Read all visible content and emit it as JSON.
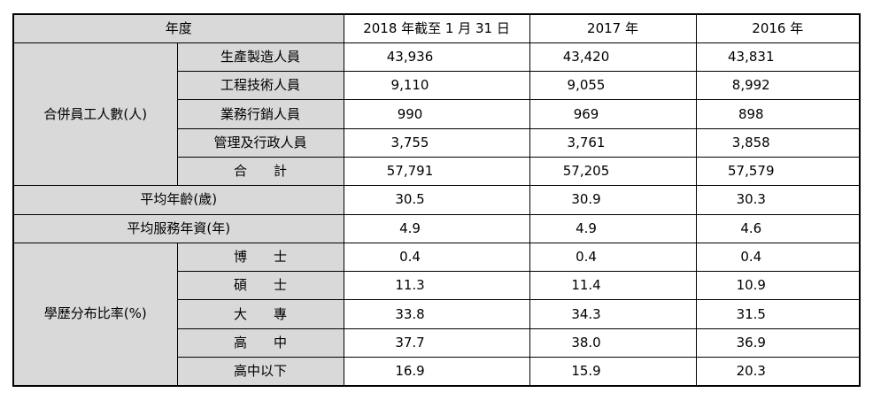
{
  "header": {
    "year_label": "年度",
    "col1": "2018 年截至 1 月 31 日",
    "col2": "2017 年",
    "col3": "2016 年"
  },
  "rows": [
    {
      "group": "合併員工人數(人)",
      "label": "生產製造人員",
      "values": [
        "43,936",
        "43,420",
        "43,831"
      ]
    },
    {
      "label": "工程技術人員",
      "values": [
        "9,110",
        "9,055",
        "8,992"
      ]
    },
    {
      "label": "業務行銷人員",
      "values": [
        "990",
        "969",
        "898"
      ]
    },
    {
      "label": "管理及行政人員",
      "values": [
        "3,755",
        "3,761",
        "3,858"
      ]
    },
    {
      "label": "合　　計",
      "values": [
        "57,791",
        "57,205",
        "57,579"
      ]
    },
    {
      "label": "平均年齡(歲)",
      "values": [
        "30.5",
        "30.9",
        "30.3"
      ]
    },
    {
      "label": "平均服務年資(年)",
      "values": [
        "4.9",
        "4.9",
        "4.6"
      ]
    },
    {
      "group": "學歷分布比率(%)",
      "label": "博　　士",
      "values": [
        "0.4",
        "0.4",
        "0.4"
      ]
    },
    {
      "label": "碩　　士",
      "values": [
        "11.3",
        "11.4",
        "10.9"
      ]
    },
    {
      "label": "大　　專",
      "values": [
        "33.8",
        "34.3",
        "31.5"
      ]
    },
    {
      "label": "高　　中",
      "values": [
        "37.7",
        "38.0",
        "36.9"
      ]
    },
    {
      "label": "高中以下",
      "values": [
        "16.9",
        "15.9",
        "20.3"
      ]
    }
  ]
}
